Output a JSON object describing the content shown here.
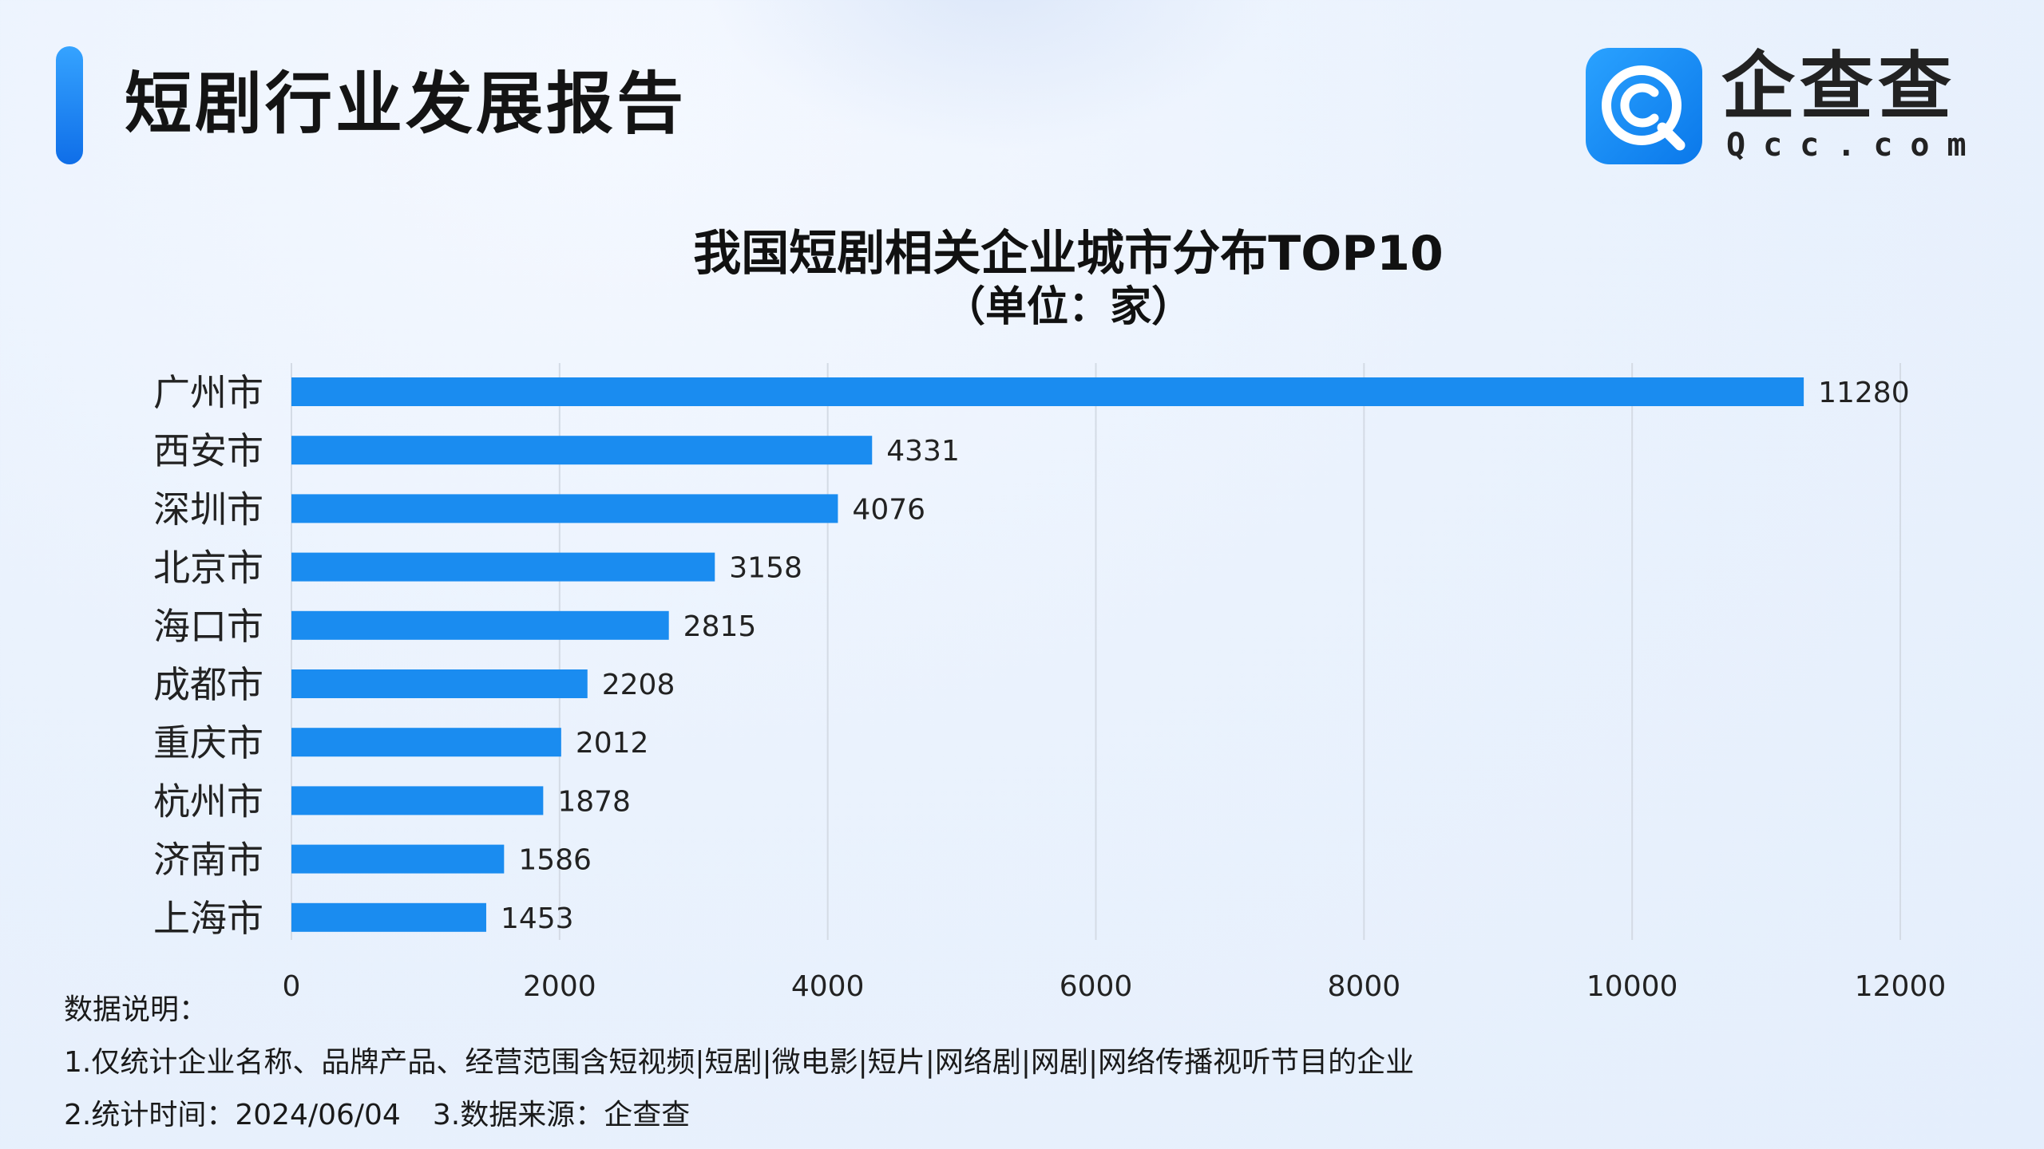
{
  "header": {
    "title": "短剧行业发展报告"
  },
  "logo": {
    "cn": "企查查",
    "en": "Qcc.com",
    "icon": "qcc-logo-icon",
    "brand_color": "#1a8cf0"
  },
  "chart_data": {
    "type": "bar",
    "orientation": "horizontal",
    "title": "我国短剧相关企业城市分布TOP10",
    "subtitle": "（单位：家）",
    "categories": [
      "广州市",
      "西安市",
      "深圳市",
      "北京市",
      "海口市",
      "成都市",
      "重庆市",
      "杭州市",
      "济南市",
      "上海市"
    ],
    "values": [
      11280,
      4331,
      4076,
      3158,
      2815,
      2208,
      2012,
      1878,
      1586,
      1453
    ],
    "xlim": [
      0,
      12000
    ],
    "xticks": [
      "0",
      "2000",
      "4000",
      "6000",
      "8000",
      "10000",
      "12000"
    ],
    "grid": "vertical",
    "bar_color": "#1a8cf0",
    "data_labels": true
  },
  "notes": {
    "heading": "数据说明：",
    "line1": "1.仅统计企业名称、品牌产品、经营范围含短视频|短剧|微电影|短片|网络剧|网剧|网络传播视听节目的企业",
    "line2a": "2.统计时间：2024/06/04",
    "line2b": "3.数据来源：企查查"
  }
}
